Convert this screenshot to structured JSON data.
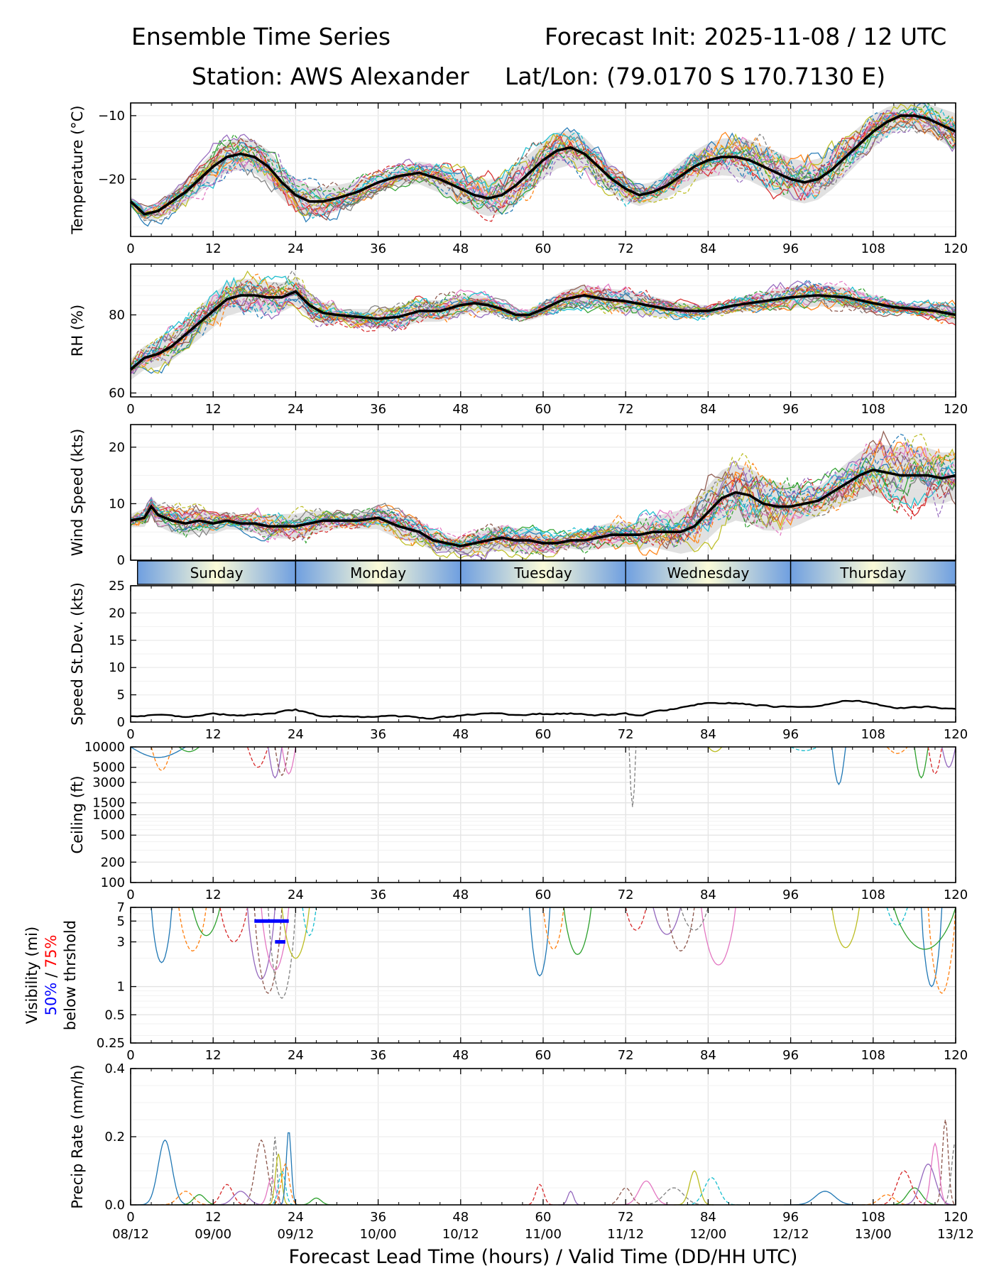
{
  "header": {
    "title_left": "Ensemble Time Series",
    "title_right": "Forecast Init: 2025-11-08 / 12 UTC",
    "station": "Station: AWS Alexander",
    "latlon": "Lat/Lon: (79.0170 S 170.7130 E)"
  },
  "colors": {
    "ensemble_palette": [
      "#1f77b4",
      "#ff7f0e",
      "#2ca02c",
      "#d62728",
      "#9467bd",
      "#8c564b",
      "#e377c2",
      "#7f7f7f",
      "#bcbd22",
      "#17becf"
    ],
    "mean_line": "#000000",
    "spread_fill": "#d9d9d9",
    "vis_50": "#0000ff",
    "vis_75": "#ff0000",
    "day_band_center": "#fbfbd8",
    "day_band_edge": "#6f9fe0"
  },
  "x_axis": {
    "ticks": [
      "0",
      "12",
      "24",
      "36",
      "48",
      "60",
      "72",
      "84",
      "96",
      "108",
      "120"
    ],
    "valid_times": [
      "08/12",
      "09/00",
      "09/12",
      "10/00",
      "10/12",
      "11/00",
      "11/12",
      "12/00",
      "12/12",
      "13/00",
      "13/12"
    ],
    "xlabel": "Forecast Lead Time (hours) / Valid Time (DD/HH UTC)"
  },
  "day_labels": [
    "Sunday",
    "Monday",
    "Tuesday",
    "Wednesday",
    "Thursday"
  ],
  "chart_data": [
    {
      "type": "line",
      "id": "temperature",
      "ylabel": "Temperature (°C)",
      "ylim": [
        -29,
        -8
      ],
      "yticks": [
        "-10",
        "-20"
      ],
      "ytick_values": [
        -10,
        -20
      ],
      "ensemble_members": 20,
      "mean": {
        "x": [
          0,
          2,
          4,
          6,
          8,
          10,
          12,
          14,
          16,
          18,
          20,
          22,
          24,
          26,
          28,
          30,
          33,
          36,
          39,
          42,
          45,
          48,
          50,
          52,
          54,
          56,
          58,
          60,
          62,
          64,
          66,
          68,
          70,
          72,
          74,
          76,
          78,
          80,
          82,
          84,
          86,
          88,
          90,
          92,
          94,
          96,
          98,
          100,
          102,
          104,
          106,
          108,
          110,
          112,
          114,
          116,
          118,
          120
        ],
        "y": [
          -23.5,
          -25.5,
          -25,
          -23.5,
          -22,
          -20,
          -18,
          -16.5,
          -16,
          -16.5,
          -18,
          -20.5,
          -22.5,
          -23.5,
          -23.5,
          -23,
          -22,
          -20.5,
          -19.5,
          -19,
          -20,
          -21.5,
          -22.5,
          -23,
          -22.5,
          -21,
          -19,
          -17,
          -15.5,
          -15,
          -16,
          -18,
          -20,
          -21.5,
          -22.5,
          -22,
          -21,
          -19.5,
          -18,
          -17,
          -16.5,
          -16.5,
          -17,
          -18,
          -19,
          -20,
          -20.5,
          -20,
          -18.5,
          -16.5,
          -14.5,
          -12.5,
          -11,
          -10,
          -10,
          -10.5,
          -11.5,
          -12.5
        ]
      }
    },
    {
      "type": "line",
      "id": "rh",
      "ylabel": "RH (%)",
      "ylim": [
        59,
        93
      ],
      "yticks": [
        "60",
        "80"
      ],
      "ytick_values": [
        60,
        80
      ],
      "ensemble_members": 20,
      "mean": {
        "x": [
          0,
          2,
          4,
          6,
          8,
          10,
          12,
          14,
          16,
          18,
          20,
          22,
          24,
          26,
          28,
          30,
          33,
          36,
          39,
          42,
          45,
          48,
          50,
          52,
          54,
          56,
          58,
          60,
          63,
          66,
          69,
          72,
          75,
          78,
          81,
          84,
          88,
          92,
          96,
          100,
          104,
          108,
          111,
          114,
          117,
          120
        ],
        "y": [
          66,
          69,
          70,
          72,
          75,
          78,
          81,
          84,
          85,
          85,
          84.5,
          84.5,
          86,
          82.5,
          80.5,
          80,
          79.5,
          79,
          79.5,
          81,
          81,
          82.5,
          83,
          82.5,
          81.5,
          80,
          80,
          81.5,
          84,
          85,
          84,
          83.5,
          82.5,
          81.5,
          81,
          81,
          82.5,
          83.5,
          84.5,
          85,
          84.5,
          83,
          82,
          81.5,
          81,
          80
        ]
      }
    },
    {
      "type": "line",
      "id": "wind_speed",
      "ylabel": "Wind Speed (kts)",
      "ylim": [
        0,
        24
      ],
      "yticks": [
        "0",
        "10",
        "20"
      ],
      "ytick_values": [
        0,
        10,
        20
      ],
      "ensemble_members": 20,
      "mean": {
        "x": [
          0,
          2,
          3,
          4,
          5,
          6,
          8,
          10,
          12,
          14,
          16,
          18,
          20,
          22,
          24,
          26,
          28,
          30,
          33,
          36,
          39,
          42,
          44,
          46,
          48,
          50,
          52,
          54,
          56,
          58,
          60,
          62,
          64,
          66,
          68,
          70,
          72,
          74,
          76,
          78,
          80,
          82,
          84,
          86,
          88,
          90,
          92,
          94,
          96,
          98,
          100,
          102,
          104,
          106,
          108,
          110,
          112,
          114,
          116,
          118,
          120
        ],
        "y": [
          7,
          7.5,
          9.5,
          8,
          7.5,
          7,
          6.5,
          7,
          6.5,
          7,
          6.5,
          6.5,
          6,
          6,
          6,
          6.5,
          7,
          7,
          7,
          7.5,
          6,
          5,
          3.5,
          3,
          2.5,
          3,
          3.5,
          4,
          3.5,
          3.5,
          3,
          3,
          3.5,
          3.5,
          4,
          4.5,
          4.5,
          4.5,
          5,
          5,
          5,
          6,
          8.5,
          11,
          12,
          11.5,
          10,
          9.5,
          9.5,
          10,
          10.5,
          12,
          13.5,
          15,
          16,
          15.5,
          15,
          15,
          15,
          14.5,
          15
        ]
      }
    },
    {
      "type": "line",
      "id": "speed_stdev",
      "ylabel": "Speed St.Dev. (kts)",
      "ylim": [
        0,
        25
      ],
      "yticks": [
        "0",
        "5",
        "10",
        "15",
        "20",
        "25"
      ],
      "ytick_values": [
        0,
        5,
        10,
        15,
        20,
        25
      ],
      "series": {
        "x": [
          0,
          4,
          8,
          12,
          16,
          20,
          24,
          26,
          28,
          32,
          36,
          40,
          42,
          44,
          48,
          52,
          56,
          60,
          64,
          68,
          72,
          74,
          76,
          80,
          84,
          88,
          92,
          96,
          100,
          104,
          106,
          108,
          110,
          112,
          116,
          118,
          120
        ],
        "y": [
          1,
          1.3,
          1,
          1.5,
          1.3,
          1.5,
          2.3,
          1.5,
          1,
          1,
          1,
          1.1,
          0.8,
          0.6,
          1.3,
          1.5,
          1.4,
          1.5,
          1.6,
          1.3,
          1.5,
          1.2,
          1.8,
          2.7,
          3.5,
          3.5,
          3,
          2.7,
          3,
          4,
          3.9,
          3.4,
          2.8,
          2.6,
          2.9,
          2.6,
          2.5
        ]
      }
    },
    {
      "type": "line",
      "id": "ceiling",
      "ylabel": "Ceiling (ft)",
      "scale": "log",
      "ylim": [
        100,
        10000
      ],
      "yticks": [
        "10000",
        "5000",
        "3000",
        "1500",
        "1000",
        "500",
        "200",
        "100"
      ],
      "ytick_values": [
        10000,
        5000,
        3000,
        1500,
        1000,
        500,
        200,
        100
      ]
    },
    {
      "type": "line",
      "id": "visibility",
      "ylabel": "Visibility (mi)",
      "ylabel_50": "50%",
      "ylabel_sep": " / ",
      "ylabel_75": "75%",
      "ylabel_sub": "below thrshold",
      "scale": "log",
      "ylim": [
        0.25,
        7
      ],
      "yticks": [
        "7",
        "5",
        "3",
        "1",
        "0.5",
        "0.25"
      ],
      "ytick_values": [
        7,
        5,
        3,
        1,
        0.5,
        0.25
      ],
      "threshold_50": {
        "x": [
          18,
          23
        ],
        "y": 5
      },
      "threshold_50b": {
        "x": [
          21,
          22.5
        ],
        "y": 3
      }
    },
    {
      "type": "line",
      "id": "precip_rate",
      "ylabel": "Precip Rate (mm/h)",
      "ylim": [
        0,
        0.4
      ],
      "yticks": [
        "0.0",
        "0.2",
        "0.4"
      ],
      "ytick_values": [
        0,
        0.2,
        0.4
      ]
    }
  ]
}
